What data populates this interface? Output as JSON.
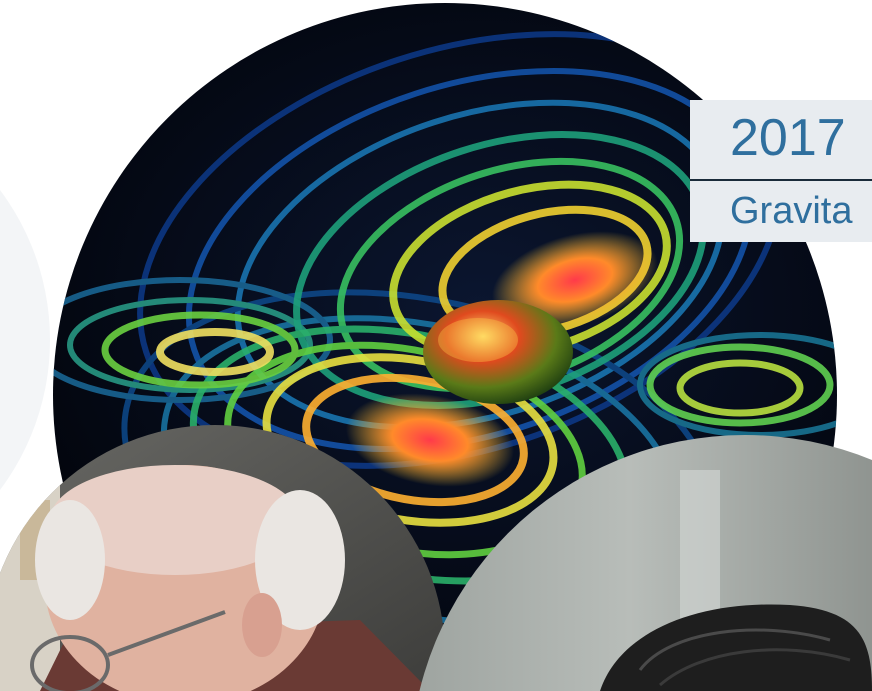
{
  "slide": {
    "title_year": "2017",
    "title_subject": "Gravita"
  },
  "colors": {
    "title_text": "#2f6f9e",
    "title_background": "#e8ecf0",
    "space_background": "#02040a"
  },
  "images": [
    {
      "name": "gravitational-wave-simulation",
      "shape": "circle"
    },
    {
      "name": "elderly-man-with-glasses-photo",
      "shape": "circle"
    },
    {
      "name": "dark-haired-person-photo",
      "shape": "circle"
    }
  ]
}
